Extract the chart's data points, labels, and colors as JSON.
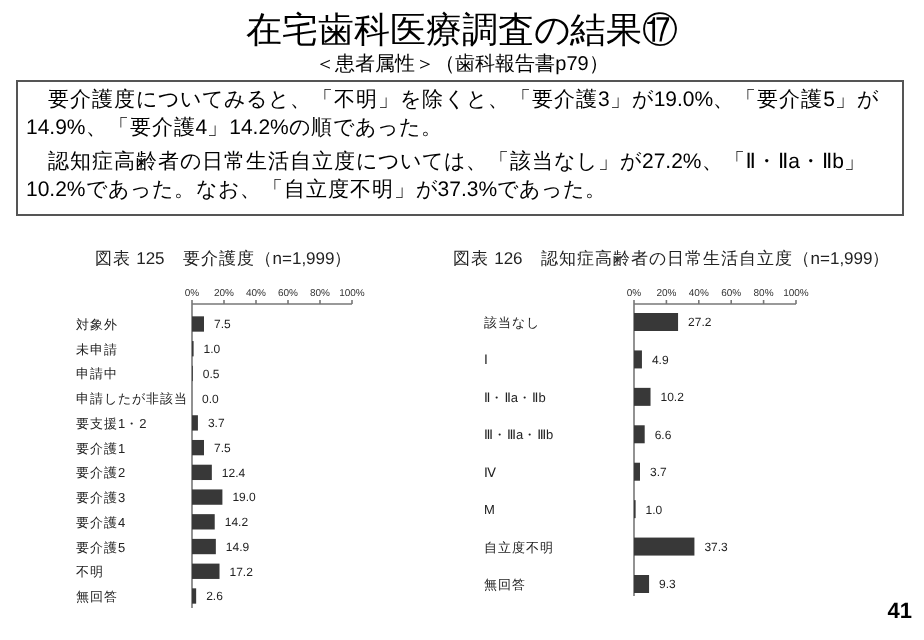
{
  "chart_data": [
    {
      "type": "other",
      "title": "在宅歯科医療調査の結果⑰",
      "subtitle": "＜患者属性＞（歯科報告書p79）",
      "annotations": [
        "　要介護度についてみると、「不明」を除くと、「要介護3」が19.0%、「要介護5」が14.9%、「要介護4」14.2%の順であった。",
        "　認知症高齢者の日常生活自立度については、「該当なし」が27.2%、「Ⅱ・Ⅱa・Ⅱb」10.2%であった。なお、「自立度不明」が37.3%であった。",
        "41"
      ]
    },
    {
      "type": "bar",
      "orientation": "horizontal",
      "title": "図表 125　要介護度（n=1,999）",
      "categories": [
        "対象外",
        "未申請",
        "申請中",
        "申請したが非該当",
        "要支援1・2",
        "要介護1",
        "要介護2",
        "要介護3",
        "要介護4",
        "要介護5",
        "不明",
        "無回答"
      ],
      "values": [
        7.5,
        1.0,
        0.5,
        0.0,
        3.7,
        7.5,
        12.4,
        19.0,
        14.2,
        14.9,
        17.2,
        2.6
      ],
      "value_labels": [
        "7.5",
        "1.0",
        "0.5",
        "0.0",
        "3.7",
        "7.5",
        "12.4",
        "19.0",
        "14.2",
        "14.9",
        "17.2",
        "2.6"
      ],
      "color": "#383838",
      "xlim": [
        0,
        100
      ],
      "xticks": [
        {
          "value": 0,
          "label": "0%"
        },
        {
          "value": 20,
          "label": "20%"
        },
        {
          "value": 40,
          "label": "40%"
        },
        {
          "value": 60,
          "label": "60%"
        },
        {
          "value": 80,
          "label": "80%"
        },
        {
          "value": 100,
          "label": "100%"
        }
      ]
    },
    {
      "type": "bar",
      "orientation": "horizontal",
      "title": "図表 126　認知症高齢者の日常生活自立度（n=1,999）",
      "categories": [
        "該当なし",
        "Ⅰ",
        "Ⅱ・Ⅱa・Ⅱb",
        "Ⅲ・Ⅲa・Ⅲb",
        "Ⅳ",
        "M",
        "自立度不明",
        "無回答"
      ],
      "values": [
        27.2,
        4.9,
        10.2,
        6.6,
        3.7,
        1.0,
        37.3,
        9.3
      ],
      "value_labels": [
        "27.2",
        "4.9",
        "10.2",
        "6.6",
        "3.7",
        "1.0",
        "37.3",
        "9.3"
      ],
      "color": "#383838",
      "xlim": [
        0,
        100
      ],
      "xticks": [
        {
          "value": 0,
          "label": "0%"
        },
        {
          "value": 20,
          "label": "20%"
        },
        {
          "value": 40,
          "label": "40%"
        },
        {
          "value": 60,
          "label": "60%"
        },
        {
          "value": 80,
          "label": "80%"
        },
        {
          "value": 100,
          "label": "100%"
        }
      ]
    }
  ]
}
